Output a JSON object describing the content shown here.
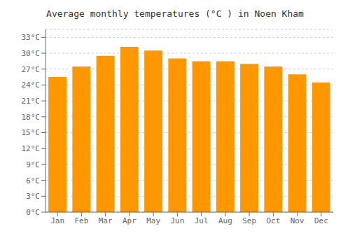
{
  "chart_data": {
    "type": "bar",
    "title": "Average monthly temperatures (°C ) in Noen Kham",
    "categories": [
      "Jan",
      "Feb",
      "Mar",
      "Apr",
      "May",
      "Jun",
      "Jul",
      "Aug",
      "Sep",
      "Oct",
      "Nov",
      "Dec"
    ],
    "values": [
      25.5,
      27.5,
      29.5,
      31.2,
      30.5,
      29.0,
      28.5,
      28.5,
      28.0,
      27.5,
      26.0,
      24.5
    ],
    "color": "#FF9800",
    "ylim": [
      0,
      34.5
    ],
    "yticks": [
      {
        "value": 0,
        "label": "0°C"
      },
      {
        "value": 3,
        "label": "3°C"
      },
      {
        "value": 6,
        "label": "6°C"
      },
      {
        "value": 9,
        "label": "9°C"
      },
      {
        "value": 12,
        "label": "12°C"
      },
      {
        "value": 15,
        "label": "15°C"
      },
      {
        "value": 18,
        "label": "18°C"
      },
      {
        "value": 21,
        "label": "21°C"
      },
      {
        "value": 24,
        "label": "24°C"
      },
      {
        "value": 27,
        "label": "27°C"
      },
      {
        "value": 30,
        "label": "30°C"
      },
      {
        "value": 33,
        "label": "33°C"
      }
    ],
    "grid": true
  }
}
